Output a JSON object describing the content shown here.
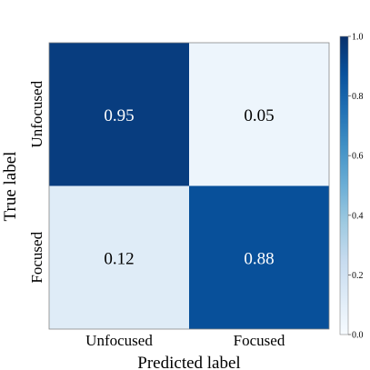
{
  "chart_data": {
    "type": "heatmap",
    "title": "",
    "xlabel": "Predicted label",
    "ylabel": "True label",
    "x_categories": [
      "Unfocused",
      "Focused"
    ],
    "y_categories": [
      "Unfocused",
      "Focused"
    ],
    "values": [
      [
        0.95,
        0.05
      ],
      [
        0.12,
        0.88
      ]
    ],
    "cell_labels": [
      [
        "0.95",
        "0.05"
      ],
      [
        "0.12",
        "0.88"
      ]
    ],
    "colorbar": {
      "range": [
        0.0,
        1.0
      ],
      "ticks": [
        "0.0",
        "0.2",
        "0.4",
        "0.6",
        "0.8",
        "1.0"
      ],
      "colormap": "Blues"
    },
    "colors": {
      "low": "#f7fbff",
      "high": "#08306b"
    }
  }
}
